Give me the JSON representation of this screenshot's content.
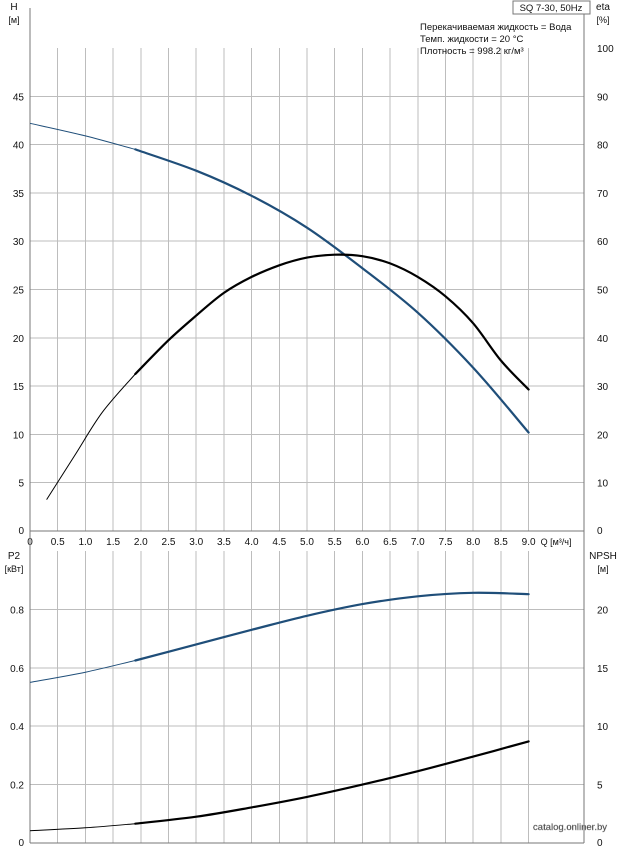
{
  "title_box": "SQ 7-30, 50Hz",
  "info_lines": [
    "Перекачиваемая жидкость = Вода",
    "Темп. жидкости = 20 °C",
    "Плотность = 998.2 кг/м³"
  ],
  "watermark": "catalog.onliner.by",
  "colors": {
    "blue": "#1f4e79",
    "black": "#000000",
    "grid": "#bdbdbd"
  },
  "chart_data": [
    {
      "type": "line",
      "panel": "top",
      "grid": true,
      "x_axis": {
        "label": "Q [м³/ч]",
        "range": [
          0,
          10
        ],
        "ticks": [
          0,
          0.5,
          1.0,
          1.5,
          2.0,
          2.5,
          3.0,
          3.5,
          4.0,
          4.5,
          5.0,
          5.5,
          6.0,
          6.5,
          7.0,
          7.5,
          8.0,
          8.5,
          9.0
        ],
        "tick_labels": [
          "0",
          "0.5",
          "1.0",
          "1.5",
          "2.0",
          "2.5",
          "3.0",
          "3.5",
          "4.0",
          "4.5",
          "5.0",
          "5.5",
          "6.0",
          "6.5",
          "7.0",
          "7.5",
          "8.0",
          "8.5",
          "9.0"
        ]
      },
      "y_left": {
        "label": "H",
        "unit": "[м]",
        "range": [
          0,
          50
        ],
        "ticks": [
          0,
          5,
          10,
          15,
          20,
          25,
          30,
          35,
          40,
          45
        ],
        "tick_labels": [
          "0",
          "5",
          "10",
          "15",
          "20",
          "25",
          "30",
          "35",
          "40",
          "45"
        ]
      },
      "y_right": {
        "label": "eta",
        "unit": "[%]",
        "range": [
          0,
          100
        ],
        "ticks": [
          0,
          10,
          20,
          30,
          40,
          50,
          60,
          70,
          80,
          90,
          100
        ],
        "tick_labels": [
          "0",
          "10",
          "20",
          "30",
          "40",
          "50",
          "60",
          "70",
          "80",
          "90",
          "100"
        ]
      },
      "series": [
        {
          "key": "H",
          "axis": "left",
          "color": "#1f4e79",
          "thin_until_x": 1.9,
          "x": [
            0,
            1.0,
            1.9,
            3.0,
            4.0,
            5.0,
            6.0,
            7.0,
            8.0,
            9.0
          ],
          "y": [
            42.2,
            40.9,
            39.5,
            37.3,
            34.7,
            31.4,
            27.2,
            22.6,
            16.9,
            10.2
          ]
        },
        {
          "key": "eta",
          "axis": "right",
          "color": "#000000",
          "thin_until_x": 1.9,
          "x": [
            0.3,
            0.8,
            1.3,
            1.9,
            2.5,
            3.0,
            3.5,
            4.0,
            4.5,
            5.0,
            5.5,
            6.0,
            6.5,
            7.0,
            7.5,
            8.0,
            8.5,
            9.0
          ],
          "y": [
            6.5,
            15.5,
            24.5,
            32.5,
            39.5,
            44.6,
            49.3,
            52.6,
            55.0,
            56.6,
            57.2,
            56.9,
            55.4,
            52.6,
            48.6,
            43.0,
            35.3,
            29.3
          ]
        }
      ]
    },
    {
      "type": "line",
      "panel": "bottom",
      "grid": true,
      "x_axis": {
        "range": [
          0,
          10
        ],
        "ticks": [
          0,
          0.5,
          1.0,
          1.5,
          2.0,
          2.5,
          3.0,
          3.5,
          4.0,
          4.5,
          5.0,
          5.5,
          6.0,
          6.5,
          7.0,
          7.5,
          8.0,
          8.5,
          9.0
        ]
      },
      "y_left": {
        "label": "P2",
        "unit": "[кВт]",
        "range": [
          0,
          1.0
        ],
        "ticks": [
          0,
          0.2,
          0.4,
          0.6,
          0.8
        ],
        "tick_labels": [
          "0",
          "0.2",
          "0.4",
          "0.6",
          "0.8"
        ]
      },
      "y_right": {
        "label": "NPSH",
        "unit": "[м]",
        "range": [
          0,
          25
        ],
        "ticks": [
          0,
          5,
          10,
          15,
          20
        ],
        "tick_labels": [
          "0",
          "5",
          "10",
          "15",
          "20"
        ]
      },
      "series": [
        {
          "key": "P2",
          "axis": "left",
          "color": "#1f4e79",
          "thin_until_x": 1.9,
          "x": [
            0,
            1.0,
            1.9,
            3.0,
            4.0,
            5.0,
            6.0,
            7.0,
            8.0,
            9.0
          ],
          "y": [
            0.55,
            0.585,
            0.625,
            0.68,
            0.73,
            0.778,
            0.818,
            0.845,
            0.857,
            0.852
          ]
        },
        {
          "key": "NPSH",
          "axis": "right",
          "color": "#000000",
          "thin_until_x": 1.9,
          "x": [
            0,
            1.0,
            1.9,
            3.0,
            4.0,
            5.0,
            6.0,
            7.0,
            8.0,
            9.0
          ],
          "y": [
            1.05,
            1.3,
            1.65,
            2.25,
            3.05,
            3.95,
            5.0,
            6.15,
            7.4,
            8.7
          ]
        }
      ]
    }
  ]
}
